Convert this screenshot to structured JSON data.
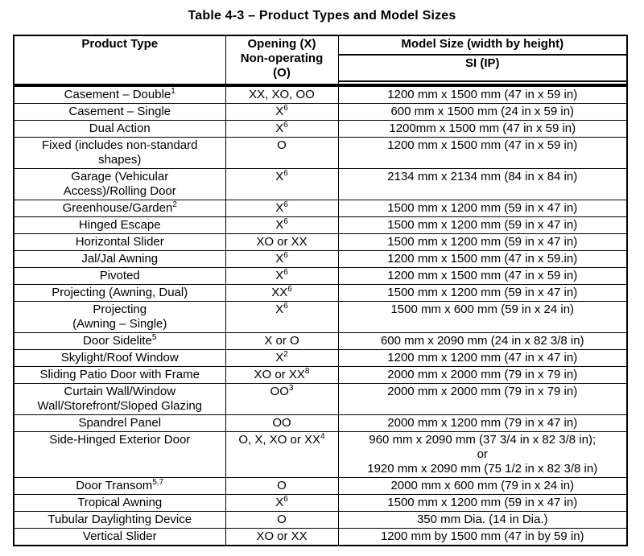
{
  "title": "Table 4-3 – Product Types and Model Sizes",
  "table": {
    "headers": {
      "product_type": "Product Type",
      "opening": "Opening (X)\nNon-operating\n(O)",
      "model_size": "Model Size (width by height)",
      "model_size_sub": "SI (IP)"
    },
    "rows": [
      {
        "product": "Casement – Double{{1}}",
        "opening": "XX, XO, OO",
        "size": "1200 mm x 1500 mm (47 in x 59 in)"
      },
      {
        "product": "Casement – Single",
        "opening": "X{{6}}",
        "size": "600 mm x 1500 mm (24 in x 59 in)"
      },
      {
        "product": "Dual Action",
        "opening": "X{{6}}",
        "size": "1200mm x 1500 mm (47 in x 59 in)"
      },
      {
        "product": "Fixed (includes non-standard\nshapes)",
        "opening": "O",
        "size": "1200 mm x 1500 mm (47 in x 59 in)"
      },
      {
        "product": "Garage (Vehicular\nAccess)/Rolling Door",
        "opening": "X{{6}}",
        "size": "2134 mm x 2134 mm (84 in x 84 in)"
      },
      {
        "product": "Greenhouse/Garden{{2}}",
        "opening": "X{{6}}",
        "size": "1500 mm x 1200 mm (59 in x 47 in)"
      },
      {
        "product": "Hinged Escape",
        "opening": "X{{6}}",
        "size": "1500 mm x 1200 mm (59 in x 47 in)"
      },
      {
        "product": "Horizontal Slider",
        "opening": "XO or XX",
        "size": "1500 mm x 1200 mm (59 in x 47 in)"
      },
      {
        "product": "Jal/Jal Awning",
        "opening": "X{{6}}",
        "size": "1200 mm x 1500 mm (47 in x 59.in)"
      },
      {
        "product": "Pivoted",
        "opening": "X{{6}}",
        "size": "1200 mm x 1500 mm (47 in x 59 in)"
      },
      {
        "product": "Projecting (Awning, Dual)",
        "opening": "XX{{6}}",
        "size": "1500 mm x 1200 mm (59 in x 47 in)"
      },
      {
        "product": "Projecting\n(Awning – Single)",
        "opening": "X{{6}}",
        "size": "1500 mm x 600 mm (59 in x 24 in)"
      },
      {
        "product": "Door Sidelite{{5}}",
        "opening": "X or O",
        "size": "600 mm x 2090 mm (24 in x 82 3/8 in)"
      },
      {
        "product": "Skylight/Roof Window",
        "opening": "X{{2}}",
        "size": "1200 mm x 1200 mm (47 in x 47 in)"
      },
      {
        "product": "Sliding Patio Door with Frame",
        "opening": "XO or XX{{8}}",
        "size": "2000 mm x 2000 mm (79 in x 79 in)"
      },
      {
        "product": "Curtain Wall/Window\nWall/Storefront/Sloped Glazing",
        "opening": "OO{{3}}",
        "size": "2000 mm x 2000 mm (79 in x 79 in)"
      },
      {
        "product": "Spandrel Panel",
        "opening": "OO",
        "size": "2000 mm x 1200 mm (79 in x 47 in)"
      },
      {
        "product": "Side-Hinged Exterior Door",
        "opening": "O, X, XO or XX{{4}}",
        "size": "960 mm x 2090 mm (37 3/4 in x 82 3/8 in);\nor\n1920 mm x 2090 mm (75 1/2 in x 82 3/8 in)"
      },
      {
        "product": "Door Transom{{5,7}}",
        "opening": "O",
        "size": "2000 mm x 600 mm (79 in x 24 in)"
      },
      {
        "product": "Tropical Awning",
        "opening": "X{{6}}",
        "size": "1500 mm x 1200 mm (59 in x 47 in)"
      },
      {
        "product": "Tubular Daylighting Device",
        "opening": "O",
        "size": "350 mm Dia. (14 in Dia.)"
      },
      {
        "product": "Vertical Slider",
        "opening": "XO or XX",
        "size": "1200 mm by 1500 mm (47 in by 59 in)"
      }
    ]
  }
}
